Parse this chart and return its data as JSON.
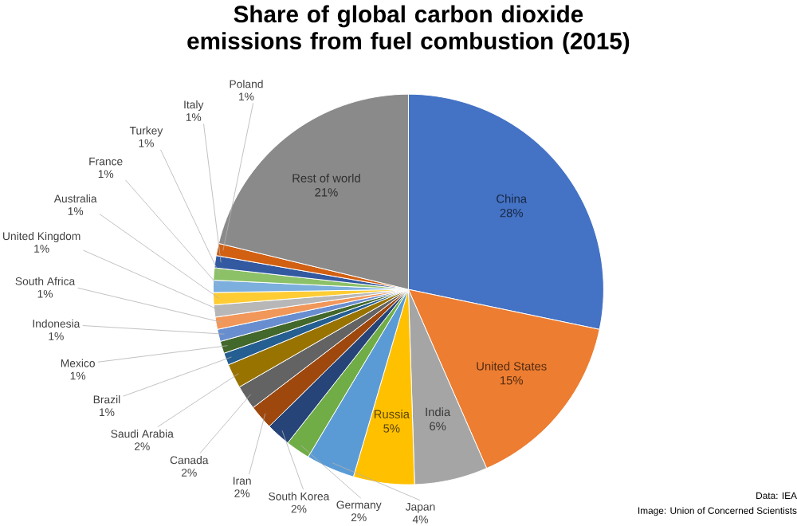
{
  "chart_data": {
    "type": "pie",
    "title": "Share of global carbon dioxide emissions from fuel combustion (2015)",
    "categories": [
      "China",
      "United States",
      "India",
      "Russia",
      "Japan",
      "Germany",
      "South Korea",
      "Iran",
      "Canada",
      "Saudi Arabia",
      "Brazil",
      "Mexico",
      "Indonesia",
      "South Africa",
      "United Kingdom",
      "Australia",
      "France",
      "Turkey",
      "Italy",
      "Poland",
      "Rest of world"
    ],
    "values": [
      28,
      15,
      6,
      5,
      4,
      2,
      2,
      2,
      2,
      2,
      1,
      1,
      1,
      1,
      1,
      1,
      1,
      1,
      1,
      1,
      21
    ],
    "value_labels": [
      "28%",
      "15%",
      "6%",
      "5%",
      "4%",
      "2%",
      "2%",
      "2%",
      "2%",
      "2%",
      "1%",
      "1%",
      "1%",
      "1%",
      "1%",
      "1%",
      "1%",
      "1%",
      "1%",
      "1%",
      "21%"
    ],
    "colors": [
      "#4472c4",
      "#ed7d31",
      "#a5a5a5",
      "#ffc000",
      "#5b9bd5",
      "#70ad47",
      "#264478",
      "#9e480e",
      "#636363",
      "#997300",
      "#255e91",
      "#43682b",
      "#698ed0",
      "#f1975a",
      "#b7b7b7",
      "#ffcd33",
      "#7cafdd",
      "#8cc168",
      "#335aa1",
      "#d26012",
      "#8a8a8a"
    ],
    "annotations": [
      "Data: IEA",
      "Image: Union of Concerned Scientists"
    ]
  }
}
